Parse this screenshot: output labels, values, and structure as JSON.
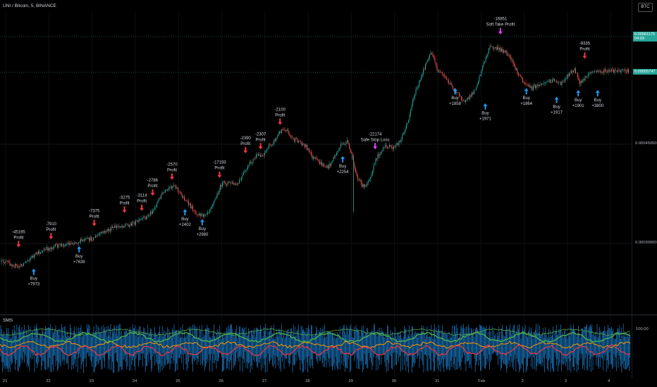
{
  "header": {
    "symbol_title": "UNI / Bitcoin, 5, BINANCE",
    "currency_button": "BTC"
  },
  "indicator": {
    "title": "SMS",
    "level_label": "100.00"
  },
  "price_axis": {
    "current_price": "0.00061175",
    "countdown": "04:03",
    "last_price": "0.00055747",
    "ticks": [
      "0.00045000",
      "0.00030000"
    ]
  },
  "time_axis": {
    "ticks": [
      "21",
      "22",
      "23",
      "24",
      "25",
      "26",
      "27",
      "28",
      "29",
      "30",
      "31",
      "Feb",
      "2",
      "3",
      "4"
    ]
  },
  "colors": {
    "background": "#000000",
    "candle_up": "#26a69a",
    "candle_down": "#ef5350",
    "sell_arrow": "#f23645",
    "buy_arrow": "#2196f3",
    "stop_arrow": "#e040fb",
    "price_tag": "#26a69a",
    "osc_blue": "#2196f3",
    "osc_green": "#4caf50",
    "osc_red": "#f23645",
    "osc_orange": "#ff9800"
  },
  "chart_data": {
    "type": "candlestick",
    "title": "UNI / Bitcoin, 5, BINANCE",
    "y_ticks": [
      0.0003,
      0.00045
    ],
    "path": [
      [
        21.0,
        0.00027
      ],
      [
        21.3,
        0.000262
      ],
      [
        21.55,
        0.000275
      ],
      [
        21.8,
        0.000285
      ],
      [
        22.1,
        0.000293
      ],
      [
        22.4,
        0.000297
      ],
      [
        22.7,
        0.000301
      ],
      [
        23.0,
        0.000305
      ],
      [
        23.3,
        0.000316
      ],
      [
        23.6,
        0.000324
      ],
      [
        23.9,
        0.000327
      ],
      [
        24.1,
        0.000332
      ],
      [
        24.3,
        0.00034
      ],
      [
        24.45,
        0.000352
      ],
      [
        24.6,
        0.000372
      ],
      [
        24.75,
        0.000378
      ],
      [
        24.9,
        0.000388
      ],
      [
        25.05,
        0.000372
      ],
      [
        25.25,
        0.000356
      ],
      [
        25.4,
        0.000345
      ],
      [
        25.55,
        0.00034
      ],
      [
        25.7,
        0.000348
      ],
      [
        25.85,
        0.000365
      ],
      [
        26.0,
        0.000388
      ],
      [
        26.2,
        0.00039
      ],
      [
        26.35,
        0.000385
      ],
      [
        26.5,
        0.000402
      ],
      [
        26.65,
        0.000418
      ],
      [
        26.8,
        0.00043
      ],
      [
        26.95,
        0.000432
      ],
      [
        27.1,
        0.000445
      ],
      [
        27.25,
        0.000456
      ],
      [
        27.4,
        0.000472
      ],
      [
        27.5,
        0.00047
      ],
      [
        27.65,
        0.000455
      ],
      [
        27.8,
        0.000452
      ],
      [
        27.95,
        0.000445
      ],
      [
        28.1,
        0.000428
      ],
      [
        28.3,
        0.000418
      ],
      [
        28.45,
        0.000412
      ],
      [
        28.6,
        0.000428
      ],
      [
        28.75,
        0.000445
      ],
      [
        28.9,
        0.000452
      ],
      [
        29.0,
        0.000432
      ],
      [
        29.15,
        0.000395
      ],
      [
        29.3,
        0.000382
      ],
      [
        29.45,
        0.000402
      ],
      [
        29.6,
        0.00043
      ],
      [
        29.8,
        0.000445
      ],
      [
        30.0,
        0.000442
      ],
      [
        30.15,
        0.000456
      ],
      [
        30.3,
        0.00048
      ],
      [
        30.45,
        0.000522
      ],
      [
        30.6,
        0.000545
      ],
      [
        30.75,
        0.000575
      ],
      [
        30.85,
        0.000588
      ],
      [
        31.0,
        0.000558
      ],
      [
        31.15,
        0.00055
      ],
      [
        31.3,
        0.000538
      ],
      [
        31.5,
        0.000521
      ],
      [
        31.65,
        0.000512
      ],
      [
        31.8,
        0.000524
      ],
      [
        31.9,
        0.000538
      ],
      [
        32.05,
        0.000568
      ],
      [
        32.2,
        0.000595
      ],
      [
        32.4,
        0.000592
      ],
      [
        32.55,
        0.000588
      ],
      [
        32.7,
        0.000575
      ],
      [
        32.85,
        0.000555
      ],
      [
        33.0,
        0.000542
      ],
      [
        33.15,
        0.000532
      ],
      [
        33.3,
        0.000536
      ],
      [
        33.5,
        0.000542
      ],
      [
        33.7,
        0.000546
      ],
      [
        33.85,
        0.000538
      ],
      [
        34.0,
        0.000552
      ],
      [
        34.15,
        0.000562
      ],
      [
        34.3,
        0.00054
      ],
      [
        34.5,
        0.000555
      ],
      [
        34.65,
        0.000558
      ]
    ]
  },
  "signals": [
    {
      "type": "sell",
      "lines": [
        "-45195",
        "Profit"
      ],
      "x": 21.3,
      "price": 0.00029
    },
    {
      "type": "buy",
      "lines": [
        "Buy",
        "+7973"
      ],
      "x": 21.65,
      "price": 0.000262
    },
    {
      "type": "sell",
      "lines": [
        "-7910",
        "Profit"
      ],
      "x": 22.05,
      "price": 0.000302
    },
    {
      "type": "buy",
      "lines": [
        "Buy",
        "+7639"
      ],
      "x": 22.7,
      "price": 0.000296
    },
    {
      "type": "sell",
      "lines": [
        "-7375",
        "Profit"
      ],
      "x": 23.05,
      "price": 0.000322
    },
    {
      "type": "sell",
      "lines": [
        "-3275",
        "Profit"
      ],
      "x": 23.75,
      "price": 0.000342
    },
    {
      "type": "sell",
      "lines": [
        "-3114",
        "Profit"
      ],
      "x": 24.15,
      "price": 0.000345
    },
    {
      "type": "sell",
      "lines": [
        "-2786",
        "Profit"
      ],
      "x": 24.4,
      "price": 0.000368
    },
    {
      "type": "sell",
      "lines": [
        "-2570",
        "Profit"
      ],
      "x": 24.85,
      "price": 0.000392
    },
    {
      "type": "buy",
      "lines": [
        "Buy",
        "+2402"
      ],
      "x": 25.15,
      "price": 0.000352
    },
    {
      "type": "buy",
      "lines": [
        "Buy",
        "+2980"
      ],
      "x": 25.55,
      "price": 0.000337
    },
    {
      "type": "sell",
      "lines": [
        "-17193",
        "Profit"
      ],
      "x": 25.95,
      "price": 0.000395
    },
    {
      "type": "sell",
      "lines": [
        "-2390",
        "Profit"
      ],
      "x": 26.55,
      "price": 0.000432
    },
    {
      "type": "sell",
      "lines": [
        "-2307",
        "Profit"
      ],
      "x": 26.9,
      "price": 0.000438
    },
    {
      "type": "sell",
      "lines": [
        "-2100",
        "Profit"
      ],
      "x": 27.35,
      "price": 0.000475
    },
    {
      "type": "buy",
      "lines": [
        "Buy",
        "+2254"
      ],
      "x": 28.8,
      "price": 0.000432
    },
    {
      "type": "stop",
      "lines": [
        "-22174",
        "Safe Stop Loss"
      ],
      "x": 29.55,
      "price": 0.000438
    },
    {
      "type": "buy",
      "lines": [
        "Buy",
        "+1858"
      ],
      "x": 31.4,
      "price": 0.000535
    },
    {
      "type": "buy",
      "lines": [
        "Buy",
        "+1971"
      ],
      "x": 32.1,
      "price": 0.000512
    },
    {
      "type": "stop",
      "lines": [
        "-16851",
        "Soft Take Profit"
      ],
      "x": 32.45,
      "price": 0.000612
    },
    {
      "type": "buy",
      "lines": [
        "Buy",
        "+1864"
      ],
      "x": 33.05,
      "price": 0.000535
    },
    {
      "type": "buy",
      "lines": [
        "Buy",
        "+1917"
      ],
      "x": 33.75,
      "price": 0.000522
    },
    {
      "type": "buy",
      "lines": [
        "Buy",
        "+1901"
      ],
      "x": 34.25,
      "price": 0.000532
    },
    {
      "type": "sell",
      "lines": [
        "-9335",
        "Profit"
      ],
      "x": 34.4,
      "price": 0.000575
    },
    {
      "type": "buy",
      "lines": [
        "Buy",
        "+3800"
      ],
      "x": 34.7,
      "price": 0.000532
    }
  ]
}
